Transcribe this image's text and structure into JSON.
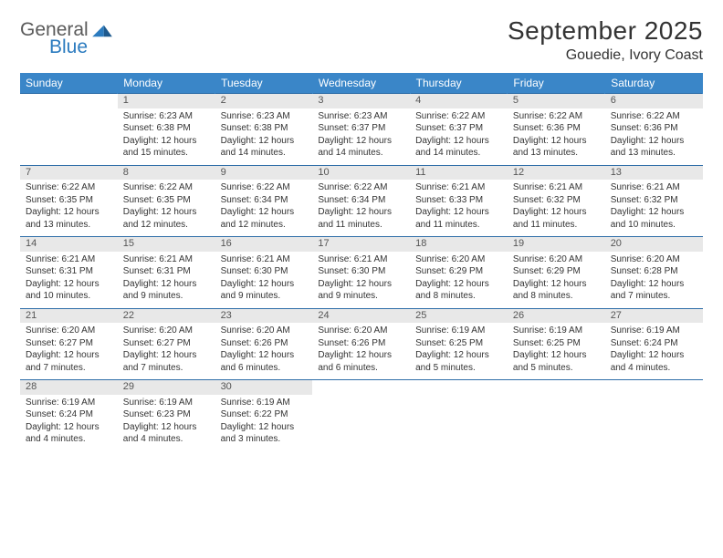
{
  "branding": {
    "logo_top": "General",
    "logo_bottom": "Blue",
    "logo_mark_color": "#2b7bbf"
  },
  "header": {
    "title": "September 2025",
    "location": "Gouedie, Ivory Coast"
  },
  "style": {
    "header_row_bg": "#3a86c8",
    "header_row_text": "#ffffff",
    "daynum_bg": "#e8e8e8",
    "week_divider": "#2f6ea8",
    "body_text": "#333333",
    "page_bg": "#ffffff"
  },
  "weekdays": [
    "Sunday",
    "Monday",
    "Tuesday",
    "Wednesday",
    "Thursday",
    "Friday",
    "Saturday"
  ],
  "weeks": [
    [
      null,
      {
        "n": "1",
        "sr": "6:23 AM",
        "ss": "6:38 PM",
        "dl": "12 hours and 15 minutes."
      },
      {
        "n": "2",
        "sr": "6:23 AM",
        "ss": "6:38 PM",
        "dl": "12 hours and 14 minutes."
      },
      {
        "n": "3",
        "sr": "6:23 AM",
        "ss": "6:37 PM",
        "dl": "12 hours and 14 minutes."
      },
      {
        "n": "4",
        "sr": "6:22 AM",
        "ss": "6:37 PM",
        "dl": "12 hours and 14 minutes."
      },
      {
        "n": "5",
        "sr": "6:22 AM",
        "ss": "6:36 PM",
        "dl": "12 hours and 13 minutes."
      },
      {
        "n": "6",
        "sr": "6:22 AM",
        "ss": "6:36 PM",
        "dl": "12 hours and 13 minutes."
      }
    ],
    [
      {
        "n": "7",
        "sr": "6:22 AM",
        "ss": "6:35 PM",
        "dl": "12 hours and 13 minutes."
      },
      {
        "n": "8",
        "sr": "6:22 AM",
        "ss": "6:35 PM",
        "dl": "12 hours and 12 minutes."
      },
      {
        "n": "9",
        "sr": "6:22 AM",
        "ss": "6:34 PM",
        "dl": "12 hours and 12 minutes."
      },
      {
        "n": "10",
        "sr": "6:22 AM",
        "ss": "6:34 PM",
        "dl": "12 hours and 11 minutes."
      },
      {
        "n": "11",
        "sr": "6:21 AM",
        "ss": "6:33 PM",
        "dl": "12 hours and 11 minutes."
      },
      {
        "n": "12",
        "sr": "6:21 AM",
        "ss": "6:32 PM",
        "dl": "12 hours and 11 minutes."
      },
      {
        "n": "13",
        "sr": "6:21 AM",
        "ss": "6:32 PM",
        "dl": "12 hours and 10 minutes."
      }
    ],
    [
      {
        "n": "14",
        "sr": "6:21 AM",
        "ss": "6:31 PM",
        "dl": "12 hours and 10 minutes."
      },
      {
        "n": "15",
        "sr": "6:21 AM",
        "ss": "6:31 PM",
        "dl": "12 hours and 9 minutes."
      },
      {
        "n": "16",
        "sr": "6:21 AM",
        "ss": "6:30 PM",
        "dl": "12 hours and 9 minutes."
      },
      {
        "n": "17",
        "sr": "6:21 AM",
        "ss": "6:30 PM",
        "dl": "12 hours and 9 minutes."
      },
      {
        "n": "18",
        "sr": "6:20 AM",
        "ss": "6:29 PM",
        "dl": "12 hours and 8 minutes."
      },
      {
        "n": "19",
        "sr": "6:20 AM",
        "ss": "6:29 PM",
        "dl": "12 hours and 8 minutes."
      },
      {
        "n": "20",
        "sr": "6:20 AM",
        "ss": "6:28 PM",
        "dl": "12 hours and 7 minutes."
      }
    ],
    [
      {
        "n": "21",
        "sr": "6:20 AM",
        "ss": "6:27 PM",
        "dl": "12 hours and 7 minutes."
      },
      {
        "n": "22",
        "sr": "6:20 AM",
        "ss": "6:27 PM",
        "dl": "12 hours and 7 minutes."
      },
      {
        "n": "23",
        "sr": "6:20 AM",
        "ss": "6:26 PM",
        "dl": "12 hours and 6 minutes."
      },
      {
        "n": "24",
        "sr": "6:20 AM",
        "ss": "6:26 PM",
        "dl": "12 hours and 6 minutes."
      },
      {
        "n": "25",
        "sr": "6:19 AM",
        "ss": "6:25 PM",
        "dl": "12 hours and 5 minutes."
      },
      {
        "n": "26",
        "sr": "6:19 AM",
        "ss": "6:25 PM",
        "dl": "12 hours and 5 minutes."
      },
      {
        "n": "27",
        "sr": "6:19 AM",
        "ss": "6:24 PM",
        "dl": "12 hours and 4 minutes."
      }
    ],
    [
      {
        "n": "28",
        "sr": "6:19 AM",
        "ss": "6:24 PM",
        "dl": "12 hours and 4 minutes."
      },
      {
        "n": "29",
        "sr": "6:19 AM",
        "ss": "6:23 PM",
        "dl": "12 hours and 4 minutes."
      },
      {
        "n": "30",
        "sr": "6:19 AM",
        "ss": "6:22 PM",
        "dl": "12 hours and 3 minutes."
      },
      null,
      null,
      null,
      null
    ]
  ],
  "labels": {
    "sunrise": "Sunrise:",
    "sunset": "Sunset:",
    "daylight": "Daylight:"
  }
}
